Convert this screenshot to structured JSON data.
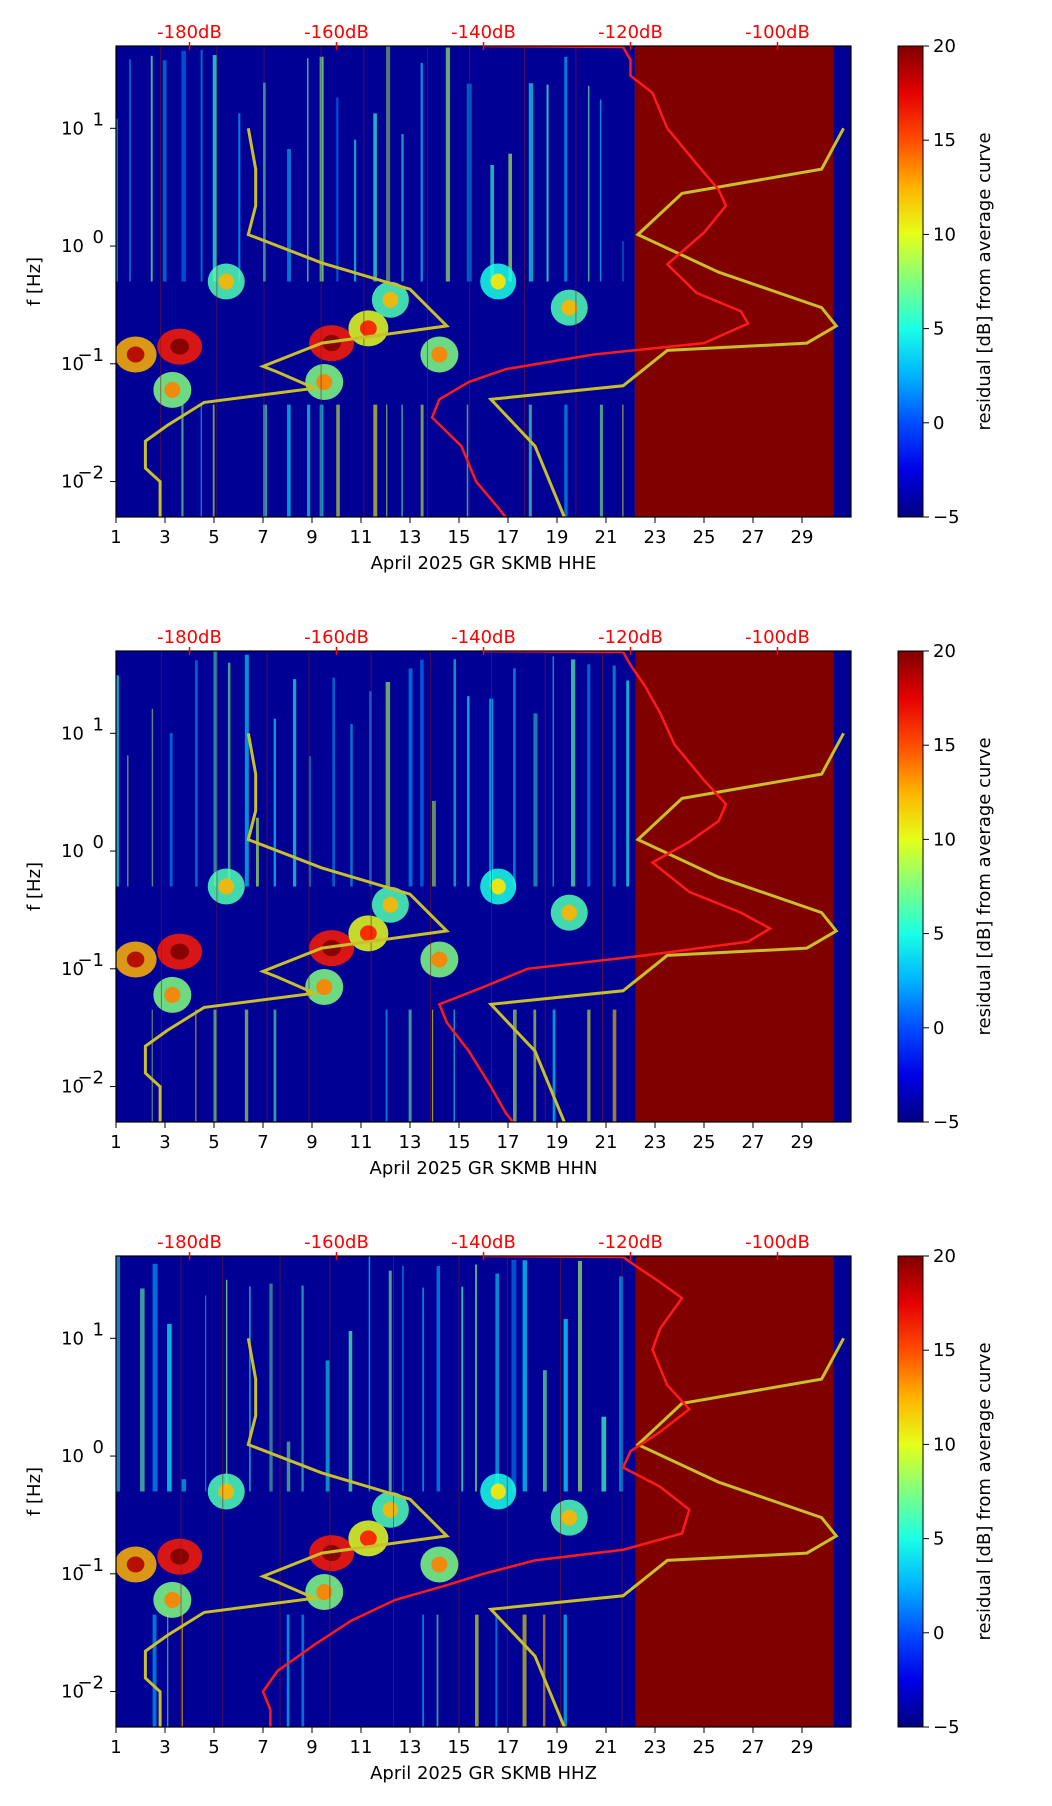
{
  "chart_data": [
    {
      "type": "heatmap",
      "xlabel": "April 2025 GR SKMB  HHE",
      "ylabel": "f [Hz]",
      "x_ticks": [
        "1",
        "3",
        "5",
        "7",
        "9",
        "11",
        "13",
        "15",
        "17",
        "19",
        "21",
        "23",
        "25",
        "27",
        "29"
      ],
      "y_ticks": [
        "10^-2",
        "10^-1",
        "10^0",
        "10^1"
      ],
      "y_range_hz": [
        0.005,
        50
      ],
      "x_range_day": [
        1,
        31
      ],
      "top_axis_ticks": [
        "-180dB",
        "-160dB",
        "-140dB",
        "-120dB",
        "-100dB"
      ],
      "colorbar": {
        "label": "residual [dB] from average curve",
        "ticks": [
          "20",
          "15",
          "10",
          "5",
          "0",
          "−5"
        ],
        "range": [
          -5,
          20
        ],
        "colormap": "jet"
      },
      "data_gap_days": [
        22.2,
        30.3
      ],
      "noise_model_curves_db": {
        "low_model": [
          [
            -172,
            10
          ],
          [
            -171,
            4.5
          ],
          [
            -171,
            2.2
          ],
          [
            -172,
            1.25
          ],
          [
            -162,
            0.72
          ],
          [
            -150,
            0.43
          ],
          [
            -145,
            0.21
          ],
          [
            -162,
            0.15
          ],
          [
            -170,
            0.095
          ],
          [
            -168,
            0.085
          ],
          [
            -163,
            0.062
          ],
          [
            -178,
            0.047
          ],
          [
            -183,
            0.03
          ],
          [
            -186,
            0.022
          ],
          [
            -186,
            0.013
          ],
          [
            -184,
            0.01
          ],
          [
            -184,
            0.005
          ]
        ],
        "high_model": [
          [
            -91,
            10
          ],
          [
            -94,
            4.5
          ],
          [
            -113,
            2.8
          ],
          [
            -119,
            1.25
          ],
          [
            -108,
            0.6
          ],
          [
            -94,
            0.3
          ],
          [
            -92,
            0.21
          ],
          [
            -96,
            0.15
          ],
          [
            -115,
            0.13
          ],
          [
            -121,
            0.065
          ],
          [
            -139,
            0.05
          ],
          [
            -133,
            0.02
          ],
          [
            -129,
            0.005
          ]
        ]
      },
      "psd_curve_db": [
        [
          -140,
          50
        ],
        [
          -121,
          49
        ],
        [
          -120,
          38
        ],
        [
          -120,
          28
        ],
        [
          -117,
          20
        ],
        [
          -115,
          10
        ],
        [
          -111,
          5
        ],
        [
          -108,
          3
        ],
        [
          -107,
          2.2
        ],
        [
          -110,
          1.3
        ],
        [
          -115,
          0.7
        ],
        [
          -111,
          0.4
        ],
        [
          -105,
          0.28
        ],
        [
          -104,
          0.22
        ],
        [
          -110,
          0.15
        ],
        [
          -125,
          0.12
        ],
        [
          -137,
          0.09
        ],
        [
          -142,
          0.07
        ],
        [
          -146,
          0.05
        ],
        [
          -147,
          0.035
        ],
        [
          -143,
          0.02
        ],
        [
          -141,
          0.01
        ],
        [
          -138,
          0.006
        ],
        [
          -137,
          0.005
        ]
      ]
    },
    {
      "type": "heatmap",
      "xlabel": "April 2025 GR SKMB  HHN",
      "ylabel": "f [Hz]",
      "x_ticks": [
        "1",
        "3",
        "5",
        "7",
        "9",
        "11",
        "13",
        "15",
        "17",
        "19",
        "21",
        "23",
        "25",
        "27",
        "29"
      ],
      "y_ticks": [
        "10^-2",
        "10^-1",
        "10^0",
        "10^1"
      ],
      "y_range_hz": [
        0.005,
        50
      ],
      "x_range_day": [
        1,
        31
      ],
      "top_axis_ticks": [
        "-180dB",
        "-160dB",
        "-140dB",
        "-120dB",
        "-100dB"
      ],
      "colorbar": {
        "label": "residual [dB] from average curve",
        "ticks": [
          "20",
          "15",
          "10",
          "5",
          "0",
          "−5"
        ],
        "range": [
          -5,
          20
        ],
        "colormap": "jet"
      },
      "data_gap_days": [
        22.2,
        30.3
      ],
      "noise_model_curves_db": {
        "low_model": [
          [
            -172,
            10
          ],
          [
            -171,
            4.5
          ],
          [
            -171,
            2.2
          ],
          [
            -172,
            1.25
          ],
          [
            -162,
            0.72
          ],
          [
            -150,
            0.43
          ],
          [
            -145,
            0.21
          ],
          [
            -162,
            0.15
          ],
          [
            -170,
            0.095
          ],
          [
            -168,
            0.085
          ],
          [
            -163,
            0.062
          ],
          [
            -178,
            0.047
          ],
          [
            -183,
            0.03
          ],
          [
            -186,
            0.022
          ],
          [
            -186,
            0.013
          ],
          [
            -184,
            0.01
          ],
          [
            -184,
            0.005
          ]
        ],
        "high_model": [
          [
            -91,
            10
          ],
          [
            -94,
            4.5
          ],
          [
            -113,
            2.8
          ],
          [
            -119,
            1.25
          ],
          [
            -108,
            0.6
          ],
          [
            -94,
            0.3
          ],
          [
            -92,
            0.21
          ],
          [
            -96,
            0.15
          ],
          [
            -115,
            0.13
          ],
          [
            -121,
            0.065
          ],
          [
            -139,
            0.05
          ],
          [
            -133,
            0.02
          ],
          [
            -129,
            0.005
          ]
        ]
      },
      "psd_curve_db": [
        [
          -140,
          50
        ],
        [
          -121,
          49
        ],
        [
          -120,
          38
        ],
        [
          -118,
          25
        ],
        [
          -116,
          15
        ],
        [
          -114,
          8
        ],
        [
          -110,
          4
        ],
        [
          -107,
          2.5
        ],
        [
          -108,
          1.8
        ],
        [
          -112,
          1.2
        ],
        [
          -117,
          0.8
        ],
        [
          -112,
          0.45
        ],
        [
          -105,
          0.3
        ],
        [
          -101,
          0.22
        ],
        [
          -104,
          0.17
        ],
        [
          -118,
          0.13
        ],
        [
          -134,
          0.1
        ],
        [
          -140,
          0.07
        ],
        [
          -146,
          0.05
        ],
        [
          -145,
          0.035
        ],
        [
          -142,
          0.02
        ],
        [
          -139,
          0.01
        ],
        [
          -137,
          0.006
        ],
        [
          -136,
          0.005
        ]
      ]
    },
    {
      "type": "heatmap",
      "xlabel": "April 2025 GR SKMB  HHZ",
      "ylabel": "f [Hz]",
      "x_ticks": [
        "1",
        "3",
        "5",
        "7",
        "9",
        "11",
        "13",
        "15",
        "17",
        "19",
        "21",
        "23",
        "25",
        "27",
        "29"
      ],
      "y_ticks": [
        "10^-2",
        "10^-1",
        "10^0",
        "10^1"
      ],
      "y_range_hz": [
        0.005,
        50
      ],
      "x_range_day": [
        1,
        31
      ],
      "top_axis_ticks": [
        "-180dB",
        "-160dB",
        "-140dB",
        "-120dB",
        "-100dB"
      ],
      "colorbar": {
        "label": "residual [dB] from average curve",
        "ticks": [
          "20",
          "15",
          "10",
          "5",
          "0",
          "−5"
        ],
        "range": [
          -5,
          20
        ],
        "colormap": "jet"
      },
      "data_gap_days": [
        22.2,
        30.3
      ],
      "noise_model_curves_db": {
        "low_model": [
          [
            -172,
            10
          ],
          [
            -171,
            4.5
          ],
          [
            -171,
            2.2
          ],
          [
            -172,
            1.25
          ],
          [
            -162,
            0.72
          ],
          [
            -150,
            0.43
          ],
          [
            -145,
            0.21
          ],
          [
            -162,
            0.15
          ],
          [
            -170,
            0.095
          ],
          [
            -168,
            0.085
          ],
          [
            -163,
            0.062
          ],
          [
            -178,
            0.047
          ],
          [
            -183,
            0.03
          ],
          [
            -186,
            0.022
          ],
          [
            -186,
            0.013
          ],
          [
            -184,
            0.01
          ],
          [
            -184,
            0.005
          ]
        ],
        "high_model": [
          [
            -91,
            10
          ],
          [
            -94,
            4.5
          ],
          [
            -113,
            2.8
          ],
          [
            -119,
            1.25
          ],
          [
            -108,
            0.6
          ],
          [
            -94,
            0.3
          ],
          [
            -92,
            0.21
          ],
          [
            -96,
            0.15
          ],
          [
            -115,
            0.13
          ],
          [
            -121,
            0.065
          ],
          [
            -139,
            0.05
          ],
          [
            -133,
            0.02
          ],
          [
            -129,
            0.005
          ]
        ]
      },
      "psd_curve_db": [
        [
          -140,
          50
        ],
        [
          -121,
          49
        ],
        [
          -119,
          40
        ],
        [
          -116,
          30
        ],
        [
          -113,
          22
        ],
        [
          -116,
          12
        ],
        [
          -117,
          8
        ],
        [
          -115,
          4
        ],
        [
          -112,
          2.5
        ],
        [
          -116,
          1.6
        ],
        [
          -120,
          1.1
        ],
        [
          -121,
          0.8
        ],
        [
          -116,
          0.55
        ],
        [
          -112,
          0.35
        ],
        [
          -113,
          0.22
        ],
        [
          -121,
          0.16
        ],
        [
          -133,
          0.13
        ],
        [
          -140,
          0.1
        ],
        [
          -145,
          0.08
        ],
        [
          -152,
          0.06
        ],
        [
          -158,
          0.04
        ],
        [
          -163,
          0.025
        ],
        [
          -168,
          0.015
        ],
        [
          -170,
          0.01
        ],
        [
          -169,
          0.007
        ],
        [
          -169,
          0.005
        ]
      ]
    }
  ]
}
